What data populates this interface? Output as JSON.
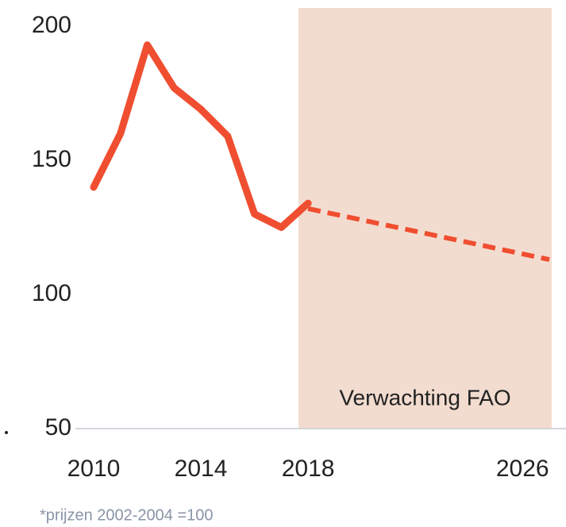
{
  "chart_data": {
    "type": "line",
    "note": "*prijzen 2002-2004 =100",
    "series": [
      {
        "x": [
          2010,
          2011,
          2012,
          2013,
          2014,
          2015,
          2016,
          2017,
          2018
        ],
        "values": [
          140,
          160,
          193,
          177,
          169,
          159,
          130,
          125,
          134
        ],
        "color": "#f04e30",
        "dashed": false
      },
      {
        "x": [
          2018,
          2027
        ],
        "values": [
          132,
          113
        ],
        "color": "#f04e30",
        "dashed": true
      }
    ],
    "forecast_region": {
      "label": "Verwachting FAO",
      "x": [
        2018,
        2027
      ],
      "color": "#f2dccf"
    },
    "xlim": [
      2010,
      2027
    ],
    "xticks": [
      2010,
      2014,
      2018,
      2026
    ],
    "ylim": [
      50,
      200
    ],
    "yticks": [
      50,
      100,
      150,
      200
    ]
  }
}
